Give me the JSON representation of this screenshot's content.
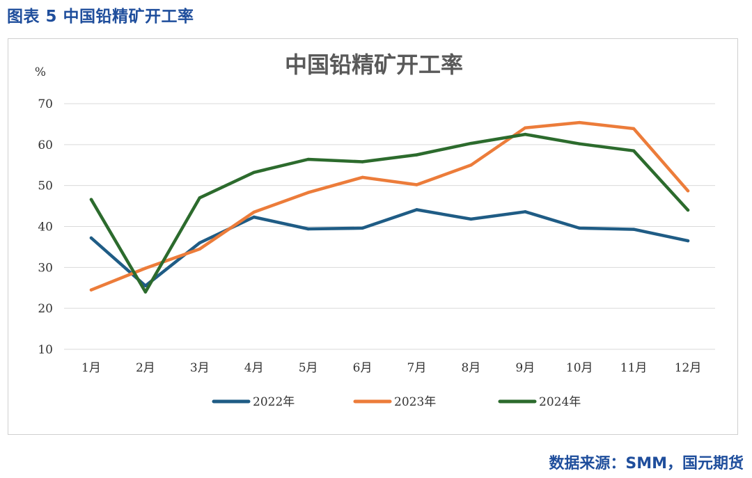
{
  "figure_caption": "图表 5 中国铅精矿开工率",
  "source_note": "数据来源：SMM，国元期货",
  "colors": {
    "caption": "#1f4e9c",
    "2022": "#1f5c85",
    "2023": "#ec7c3a",
    "2024": "#2c6b2d",
    "grid": "#d9d9d9"
  },
  "chart_data": {
    "type": "line",
    "title": "中国铅精矿开工率",
    "unit": "%",
    "categories": [
      "1月",
      "2月",
      "3月",
      "4月",
      "5月",
      "6月",
      "7月",
      "8月",
      "9月",
      "10月",
      "11月",
      "12月"
    ],
    "ylim": [
      10,
      70
    ],
    "yticks": [
      10,
      20,
      30,
      40,
      50,
      60,
      70
    ],
    "grid": true,
    "legend_position": "bottom",
    "series": [
      {
        "name": "2022年",
        "color": "#1f5c85",
        "values": [
          37.2,
          25.5,
          36.0,
          42.3,
          39.4,
          39.6,
          44.1,
          41.8,
          43.6,
          39.6,
          39.3,
          36.5
        ]
      },
      {
        "name": "2023年",
        "color": "#ec7c3a",
        "values": [
          24.5,
          29.8,
          34.5,
          43.5,
          48.3,
          52.0,
          50.2,
          55.0,
          64.1,
          65.4,
          63.9,
          48.7
        ]
      },
      {
        "name": "2024年",
        "color": "#2c6b2d",
        "values": [
          46.6,
          24.0,
          47.0,
          53.2,
          56.4,
          55.8,
          57.5,
          60.3,
          62.5,
          60.2,
          58.5,
          44.0
        ]
      }
    ]
  }
}
